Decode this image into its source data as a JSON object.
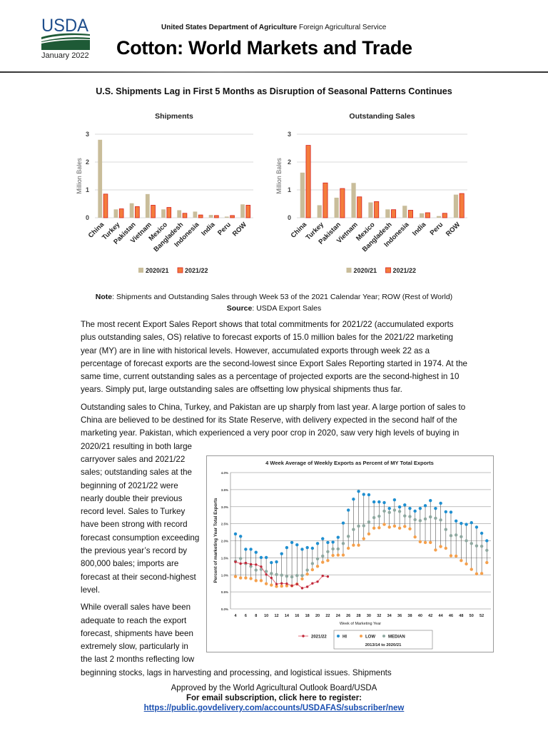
{
  "header": {
    "logo_text": "USDA",
    "date": "January 2022",
    "agency_bold": "United States Department of Agriculture",
    "agency_rest": "Foreign Agricultural Service",
    "title": "Cotton: World Markets and Trade",
    "colors": {
      "logo_blue": "#1f4e8c",
      "logo_green": "#1e5a36"
    }
  },
  "headline": "U.S. Shipments Lag in First 5 Months as Disruption of Seasonal Patterns Continues",
  "note": {
    "note_label": "Note",
    "note_text": ": Shipments and Outstanding Sales through Week 53 of the 2021 Calendar Year; ROW (Rest of World)",
    "source_label": "Source",
    "source_text": ": USDA Export Sales"
  },
  "body": {
    "p1": "The most recent Export Sales Report shows that total commitments for 2021/22 (accumulated exports plus outstanding sales, OS) relative to forecast exports of 15.0 million bales for the 2021/22 marketing year (MY) are in line with historical levels. However, accumulated exports through week 22 as a percentage of forecast exports are the second-lowest since Export Sales Reporting started in 1974. At the same time, current outstanding sales as a percentage of projected exports are the second-highest in 10 years. Simply put, large outstanding sales are offsetting low physical shipments thus far.",
    "p2": "Outstanding sales to China, Turkey, and Pakistan are up sharply from last year. A large portion of sales to China are believed to be destined for its State Reserve, with delivery expected in the second half of the marketing year. Pakistan, which experienced a very poor crop in 2020, saw very high levels of buying in 2020/21 resulting in both large carryover sales and 2021/22 sales; outstanding sales at the beginning of 2021/22 were nearly double their previous record level. Sales to Turkey have been strong with record forecast consumption exceeding the previous year’s record by 800,000 bales; imports are forecast at their second-highest level.",
    "p3": "While overall sales have been adequate to reach the export forecast, shipments have been extremely slow, particularly in the last 2 months reflecting low beginning stocks, lags in harvesting and processing, and logistical issues. Shipments"
  },
  "footer": {
    "approved": "Approved by the World Agricultural Outlook Board/USDA",
    "subscribe": "For email subscription, click here to register:",
    "link": "https://public.govdelivery.com/accounts/USDAFAS/subscriber/new"
  },
  "chart_data": [
    {
      "type": "bar",
      "title": "Shipments",
      "ylabel": "Million Bales",
      "ylim": [
        0,
        3
      ],
      "yticks": [
        "0",
        "1",
        "2",
        "3"
      ],
      "grid": true,
      "legend": "bottom",
      "categories": [
        "China",
        "Turkey",
        "Pakistan",
        "Vietnam",
        "Mexico",
        "Bangladesh",
        "Indonesia",
        "India",
        "Peru",
        "ROW"
      ],
      "series": [
        {
          "name": "2020/21",
          "color": "#c9bd9a",
          "values": [
            2.8,
            0.3,
            0.52,
            0.85,
            0.3,
            0.27,
            0.22,
            0.1,
            0.04,
            0.48
          ]
        },
        {
          "name": "2021/22",
          "color": "#f47c3c",
          "values": [
            0.85,
            0.32,
            0.4,
            0.45,
            0.37,
            0.16,
            0.1,
            0.08,
            0.08,
            0.45
          ]
        }
      ]
    },
    {
      "type": "bar",
      "title": "Outstanding Sales",
      "ylabel": "Million Bales",
      "ylim": [
        0,
        3
      ],
      "yticks": [
        "0",
        "1",
        "2",
        "3"
      ],
      "grid": true,
      "legend": "bottom",
      "categories": [
        "China",
        "Turkey",
        "Pakistan",
        "Vietnam",
        "Mexico",
        "Bangladesh",
        "Indonesia",
        "India",
        "Peru",
        "ROW"
      ],
      "series": [
        {
          "name": "2020/21",
          "color": "#c9bd9a",
          "values": [
            1.62,
            0.45,
            0.72,
            1.25,
            0.55,
            0.3,
            0.43,
            0.16,
            0.06,
            0.83
          ]
        },
        {
          "name": "2021/22",
          "color": "#f47c3c",
          "values": [
            2.6,
            1.25,
            1.05,
            0.75,
            0.58,
            0.29,
            0.27,
            0.18,
            0.16,
            0.87
          ]
        }
      ]
    },
    {
      "type": "scatter",
      "title": "4 Week Average of Weekly Exports as Percent of MY Total Exports",
      "xlabel": "Week of Marketing Year",
      "ylabel": "Percent of marketing Year Total Exports",
      "xlim": [
        4,
        53
      ],
      "ylim": [
        0,
        4
      ],
      "xticks": [
        "4",
        "6",
        "8",
        "10",
        "12",
        "14",
        "16",
        "18",
        "20",
        "22",
        "24",
        "26",
        "28",
        "30",
        "32",
        "34",
        "36",
        "38",
        "40",
        "42",
        "44",
        "46",
        "48",
        "50",
        "52"
      ],
      "yticks": [
        "0.0%",
        "0.5%",
        "1.0%",
        "1.5%",
        "2.0%",
        "2.5%",
        "3.0%",
        "3.5%",
        "4.0%"
      ],
      "grid": true,
      "legend": "bottom",
      "legend_subtitle": "2013/14 to 2020/21",
      "x": [
        4,
        5,
        6,
        7,
        8,
        9,
        10,
        11,
        12,
        13,
        14,
        15,
        16,
        17,
        18,
        19,
        20,
        21,
        22,
        23,
        24,
        25,
        26,
        27,
        28,
        29,
        30,
        31,
        32,
        33,
        34,
        35,
        36,
        37,
        38,
        39,
        40,
        41,
        42,
        43,
        44,
        45,
        46,
        47,
        48,
        49,
        50,
        51,
        52,
        53
      ],
      "series": [
        {
          "name": "2021/22",
          "color": "#c0283a",
          "x": [
            4,
            5,
            6,
            7,
            8,
            9,
            10,
            11,
            12,
            13,
            14,
            15,
            16,
            17,
            18,
            19,
            20,
            21,
            22
          ],
          "values": [
            1.38,
            1.33,
            1.35,
            1.31,
            1.3,
            1.24,
            1.01,
            0.91,
            0.73,
            0.75,
            0.74,
            0.68,
            0.73,
            0.61,
            0.65,
            0.75,
            0.8,
            0.97,
            0.95
          ]
        },
        {
          "name": "HI",
          "color": "#1f8fd0",
          "values": [
            2.2,
            2.13,
            1.75,
            1.75,
            1.66,
            1.51,
            1.51,
            1.36,
            1.38,
            1.62,
            1.8,
            1.95,
            1.88,
            1.75,
            1.8,
            1.78,
            1.92,
            2.06,
            1.95,
            1.96,
            2.1,
            2.52,
            2.9,
            3.22,
            3.45,
            3.36,
            3.35,
            3.14,
            3.14,
            3.12,
            2.95,
            3.2,
            2.99,
            3.05,
            2.95,
            2.87,
            2.95,
            3.03,
            3.18,
            2.95,
            3.1,
            2.85,
            2.84,
            2.58,
            2.51,
            2.48,
            2.53,
            2.4,
            2.22,
            2.0
          ]
        },
        {
          "name": "LOW",
          "color": "#f5a04c",
          "values": [
            0.95,
            0.91,
            0.91,
            0.89,
            0.83,
            0.83,
            0.74,
            0.7,
            0.66,
            0.67,
            0.68,
            0.68,
            0.73,
            0.88,
            1.02,
            1.15,
            1.25,
            1.37,
            1.42,
            1.57,
            1.58,
            1.58,
            1.78,
            1.87,
            1.87,
            2.06,
            2.2,
            2.37,
            2.38,
            2.48,
            2.4,
            2.43,
            2.37,
            2.42,
            2.35,
            2.11,
            1.97,
            1.95,
            1.95,
            1.73,
            1.83,
            1.78,
            1.56,
            1.55,
            1.42,
            1.32,
            1.16,
            1.03,
            1.04,
            1.36
          ]
        },
        {
          "name": "MEDIAN",
          "color": "#8fa8a0",
          "values": [
            1.4,
            1.48,
            1.33,
            1.25,
            1.14,
            1.16,
            1.1,
            1.04,
            1.01,
            0.99,
            0.96,
            0.94,
            0.98,
            0.98,
            1.14,
            1.33,
            1.47,
            1.55,
            1.68,
            1.76,
            1.76,
            1.92,
            2.13,
            2.33,
            2.43,
            2.44,
            2.55,
            2.68,
            2.72,
            2.87,
            2.83,
            2.9,
            2.86,
            2.73,
            2.71,
            2.62,
            2.59,
            2.64,
            2.7,
            2.66,
            2.61,
            2.33,
            2.15,
            2.17,
            2.12,
            2.0,
            1.92,
            1.85,
            1.84,
            1.72
          ]
        }
      ]
    }
  ]
}
